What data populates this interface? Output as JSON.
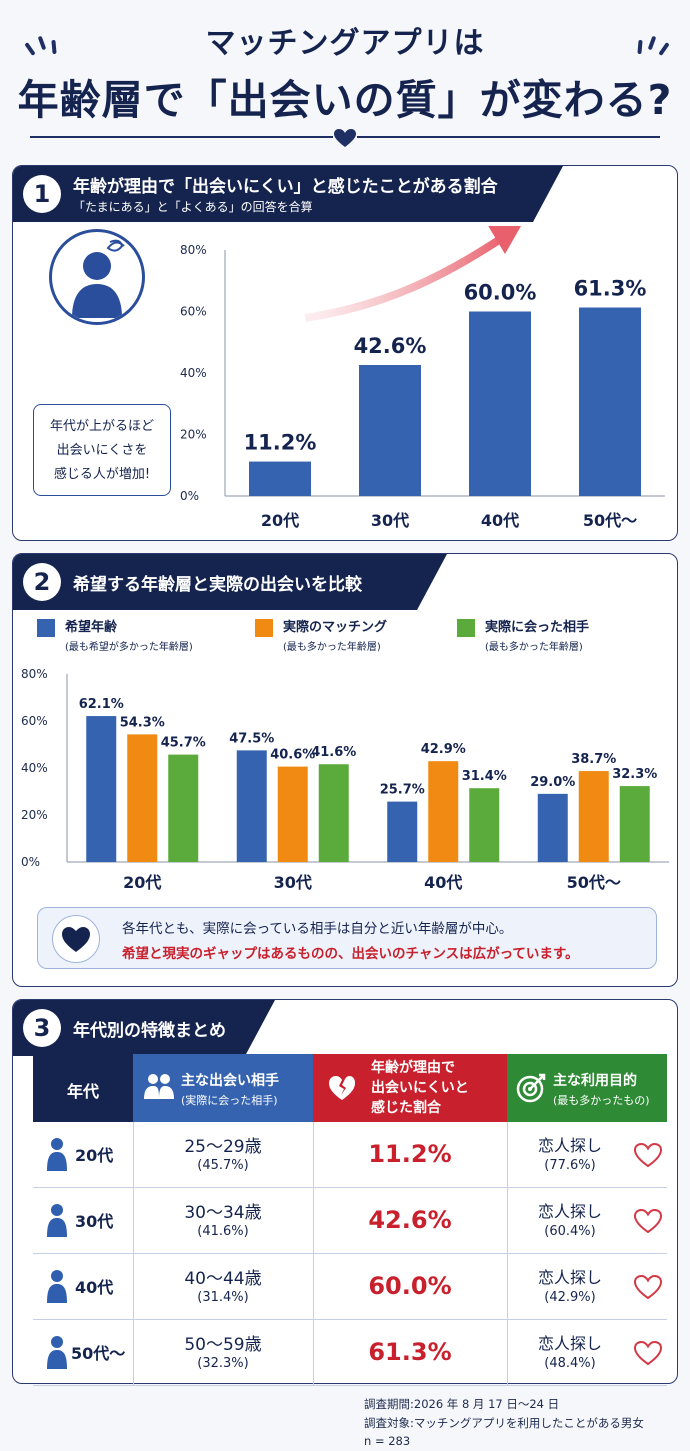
{
  "title": {
    "line1": "マッチングアプリは",
    "line2": "年齢層で「出会いの質」が変わる?"
  },
  "section1": {
    "num": "1",
    "title": "年齢が理由で「出会いにくい」と感じたことがある割合",
    "subtitle": "「たまにある」と「よくある」の回答を合算",
    "callout": [
      "年代が上がるほど",
      "出会いにくさを",
      "感じる人が増加!"
    ]
  },
  "section2": {
    "num": "2",
    "title": "希望する年齢層と実際の出会いを比較",
    "note_line1": "各年代とも、実際に会っている相手は自分と近い年齢層が中心。",
    "note_line2": "希望と現実のギャップはあるものの、出会いのチャンスは広がっています。"
  },
  "section3": {
    "num": "3",
    "title": "年代別の特徴まとめ",
    "headers": {
      "age": "年代",
      "partner": "主な出会い相手",
      "partner_sub": "(実際に会った相手)",
      "difficulty": [
        "年齢が理由で",
        "出会いにくいと",
        "感じた割合"
      ],
      "purpose": "主な利用目的",
      "purpose_sub": "(最も多かったもの)"
    },
    "rows": [
      {
        "age": "20代",
        "partner_range": "25〜29歳",
        "partner_pct": "(45.7%)",
        "rate": "11.2%",
        "purpose": "恋人探し",
        "purpose_pct": "(77.6%)"
      },
      {
        "age": "30代",
        "partner_range": "30〜34歳",
        "partner_pct": "(41.6%)",
        "rate": "42.6%",
        "purpose": "恋人探し",
        "purpose_pct": "(60.4%)"
      },
      {
        "age": "40代",
        "partner_range": "40〜44歳",
        "partner_pct": "(31.4%)",
        "rate": "60.0%",
        "purpose": "恋人探し",
        "purpose_pct": "(42.9%)"
      },
      {
        "age": "50代〜",
        "partner_range": "50〜59歳",
        "partner_pct": "(32.3%)",
        "rate": "61.3%",
        "purpose": "恋人探し",
        "purpose_pct": "(48.4%)"
      }
    ]
  },
  "footer": {
    "period": "調査期間:2026 年 8 月 17 日〜24 日",
    "target": "調査対象:マッチングアプリを利用したことがある男女",
    "n": "n = 283"
  },
  "colors": {
    "navy": "#15244f",
    "blue": "#3563b0",
    "orange": "#f18a12",
    "green": "#5aab3c",
    "red": "#c8202c",
    "purpose_header": "#2f8a35"
  },
  "icons": {
    "avatar": "confused-person-icon",
    "note": "heart-icon",
    "partner": "people-icon",
    "difficulty": "broken-heart-icon",
    "purpose": "target-icon",
    "row": "person-icon",
    "row_end": "heart-outline-icon"
  },
  "chart_data": [
    {
      "type": "bar",
      "title": "年齢が理由で「出会いにくい」と感じたことがある割合",
      "categories": [
        "20代",
        "30代",
        "40代",
        "50代〜"
      ],
      "values": [
        11.2,
        42.6,
        60.0,
        61.3
      ],
      "value_labels": [
        "11.2%",
        "42.6%",
        "60.0%",
        "61.3%"
      ],
      "yticks": [
        "0%",
        "20%",
        "40%",
        "60%",
        "80%"
      ],
      "ylim": [
        0,
        80
      ],
      "grid": false,
      "color": "#3563b0"
    },
    {
      "type": "bar",
      "title": "希望する年齢層と実際の出会いを比較",
      "categories": [
        "20代",
        "30代",
        "40代",
        "50代〜"
      ],
      "series": [
        {
          "name": "希望年齢",
          "note": "(最も希望が多かった年齢層)",
          "color": "#3563b0",
          "values": [
            62.1,
            47.5,
            25.7,
            29.0
          ],
          "labels": [
            "62.1%",
            "47.5%",
            "25.7%",
            "29.0%"
          ]
        },
        {
          "name": "実際のマッチング",
          "note": "(最も多かった年齢層)",
          "color": "#f18a12",
          "values": [
            54.3,
            40.6,
            42.9,
            38.7
          ],
          "labels": [
            "54.3%",
            "40.6%",
            "42.9%",
            "38.7%"
          ]
        },
        {
          "name": "実際に会った相手",
          "note": "(最も多かった年齢層)",
          "color": "#5aab3c",
          "values": [
            45.7,
            41.6,
            31.4,
            32.3
          ],
          "labels": [
            "45.7%",
            "41.6%",
            "31.4%",
            "32.3%"
          ]
        }
      ],
      "yticks": [
        "0%",
        "20%",
        "40%",
        "60%",
        "80%"
      ],
      "ylim": [
        0,
        80
      ],
      "grid": false,
      "legend": "top"
    }
  ]
}
